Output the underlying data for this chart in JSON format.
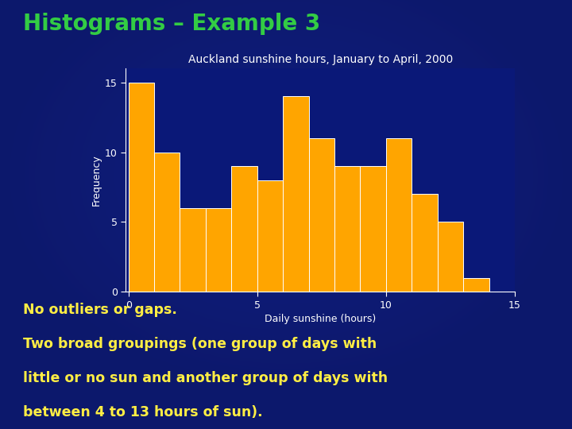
{
  "title": "Histograms – Example 3",
  "chart_title": "Auckland sunshine hours, January to April, 2000",
  "xlabel": "Daily sunshine (hours)",
  "ylabel": "Frequency",
  "bar_heights": [
    15,
    10,
    6,
    6,
    9,
    8,
    14,
    11,
    9,
    9,
    11,
    7,
    5,
    1
  ],
  "bin_edges": [
    0,
    1,
    2,
    3,
    4,
    5,
    6,
    7,
    8,
    9,
    10,
    11,
    12,
    13,
    14
  ],
  "bar_color": "#FFA500",
  "bar_edgecolor": "#FFFFFF",
  "xticks": [
    0,
    5,
    10,
    15
  ],
  "yticks": [
    0,
    5,
    10,
    15
  ],
  "bg_color_top": "#0a1060",
  "bg_color_center": "#0a1878",
  "bg_color_bottom": "#000830",
  "slide_title_color": "#33CC44",
  "chart_title_color": "#FFFFFF",
  "axis_label_color": "#FFFFFF",
  "tick_color": "#FFFFFF",
  "text_color_yellow": "#FFEE44",
  "note_line1": "No outliers or gaps.",
  "note_line2": "Two broad groupings (one group of days with",
  "note_line3": "little or no sun and another group of days with",
  "note_line4": "between 4 to 13 hours of sun).",
  "plot_bg": "#0a1878"
}
